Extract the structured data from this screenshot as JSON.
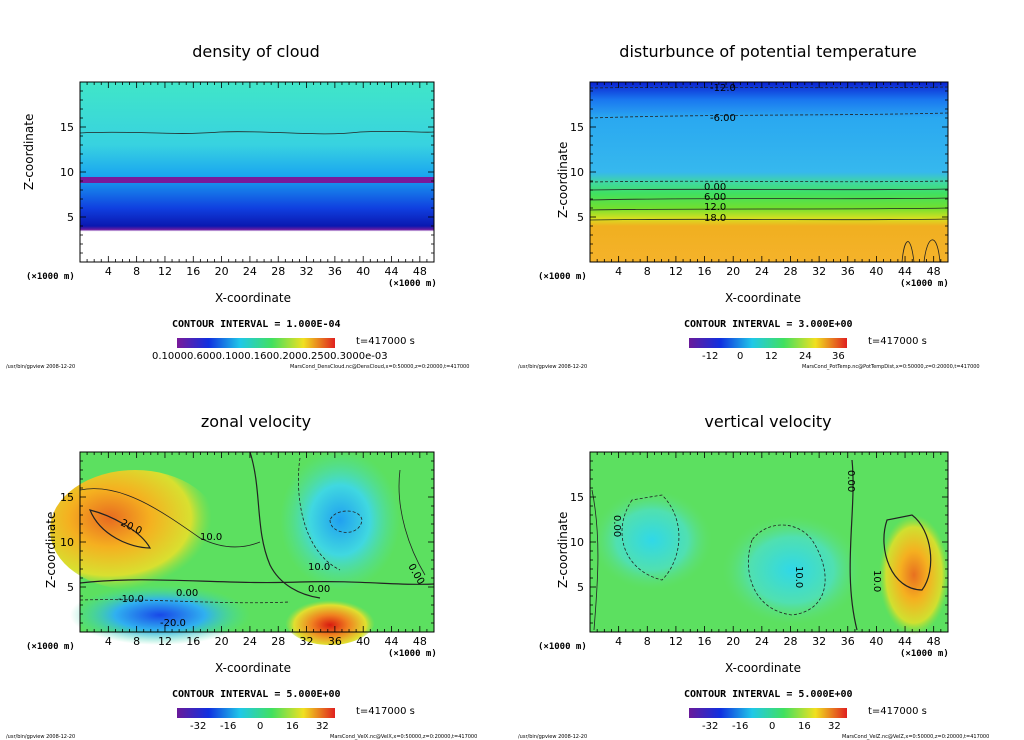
{
  "time_label": "t=417000 s",
  "footer_left": "/usr/bin/gpview   2008-12-20",
  "chart_data": [
    {
      "type": "heatmap",
      "title": "density of cloud",
      "xlabel": "X-coordinate",
      "ylabel": "Z-coordinate",
      "x_unit_label": "(×1000 m)",
      "xlim": [
        0,
        50
      ],
      "ylim": [
        0,
        20
      ],
      "xticks": [
        4,
        8,
        12,
        16,
        20,
        24,
        28,
        32,
        36,
        40,
        44,
        48
      ],
      "yticks": [
        5,
        10,
        15
      ],
      "contour_interval": "CONTOUR INTERVAL = 1.000E-04",
      "colorbar_ticks": "0.10000.6000.1000.1600.2000.2500.3000e-03",
      "footer_right": "MarsCond_DensCloud.nc@DensCloud,x=0:50000,z=0:20000,t=417000",
      "contour_labels": []
    },
    {
      "type": "heatmap",
      "title": "disturbunce of potential temperature",
      "xlabel": "X-coordinate",
      "ylabel": "Z-coordinate",
      "x_unit_label": "(×1000 m)",
      "xlim": [
        0,
        50
      ],
      "ylim": [
        0,
        20
      ],
      "xticks": [
        4,
        8,
        12,
        16,
        20,
        24,
        28,
        32,
        36,
        40,
        44,
        48
      ],
      "yticks": [
        5,
        10,
        15
      ],
      "contour_interval": "CONTOUR INTERVAL = 3.000E+00",
      "colorbar_ticks": [
        "-12",
        "0",
        "12",
        "24",
        "36"
      ],
      "footer_right": "MarsCond_PotTemp.nc@PotTempDist,x=0:50000,z=0:20000,t=417000",
      "contour_labels": [
        "-12.0",
        "-6.00",
        "0.00",
        "6.00",
        "12.0",
        "18.0"
      ]
    },
    {
      "type": "heatmap",
      "title": "zonal velocity",
      "xlabel": "X-coordinate",
      "ylabel": "Z-coordinate",
      "x_unit_label": "(×1000 m)",
      "xlim": [
        0,
        50
      ],
      "ylim": [
        0,
        20
      ],
      "xticks": [
        4,
        8,
        12,
        16,
        20,
        24,
        28,
        32,
        36,
        40,
        44,
        48
      ],
      "yticks": [
        5,
        10,
        15
      ],
      "contour_interval": "CONTOUR INTERVAL = 5.000E+00",
      "colorbar_ticks": [
        "-32",
        "-16",
        "0",
        "16",
        "32"
      ],
      "footer_right": "MarsCond_VelX.nc@VelX,x=0:50000,z=0:20000,t=417000",
      "contour_labels": [
        "20.0",
        "10.0",
        "-10.0",
        "0.00",
        "-20.0",
        "10.0",
        "0.00",
        "0.00"
      ]
    },
    {
      "type": "heatmap",
      "title": "vertical velocity",
      "xlabel": "X-coordinate",
      "ylabel": "Z-coordinate",
      "x_unit_label": "(×1000 m)",
      "xlim": [
        0,
        50
      ],
      "ylim": [
        0,
        20
      ],
      "xticks": [
        4,
        8,
        12,
        16,
        20,
        24,
        28,
        32,
        36,
        40,
        44,
        48
      ],
      "yticks": [
        5,
        10,
        15
      ],
      "contour_interval": "CONTOUR INTERVAL = 5.000E+00",
      "colorbar_ticks": [
        "-32",
        "-16",
        "0",
        "16",
        "32"
      ],
      "footer_right": "MarsCond_VelZ.nc@VelZ,x=0:50000,z=0:20000,t=417000",
      "contour_labels": [
        "0.00",
        "0.00",
        "10.0",
        "10.0"
      ]
    }
  ]
}
